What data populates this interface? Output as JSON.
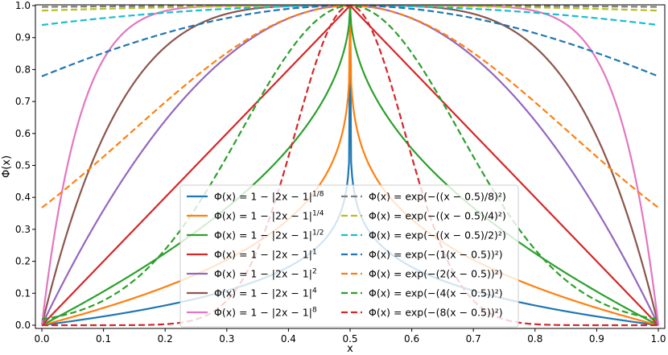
{
  "chart_data": {
    "type": "line",
    "xlabel": "x",
    "ylabel": "Φ(x)",
    "xlim": [
      0.0,
      1.0
    ],
    "ylim": [
      0.0,
      1.0
    ],
    "x_ticks": [
      "0.0",
      "0.1",
      "0.2",
      "0.3",
      "0.4",
      "0.5",
      "0.6",
      "0.7",
      "0.8",
      "0.9",
      "1.0"
    ],
    "y_ticks": [
      "0.0",
      "0.1",
      "0.2",
      "0.3",
      "0.4",
      "0.5",
      "0.6",
      "0.7",
      "0.8",
      "0.9",
      "1.0"
    ],
    "grid": false,
    "legend_position": "lower-center",
    "x": [
      0.0,
      0.1,
      0.2,
      0.3,
      0.4,
      0.5,
      0.6,
      0.7,
      0.8,
      0.9,
      1.0
    ],
    "series": [
      {
        "name": "Φ(x) = 1 − |2x − 1|^(1/8)",
        "label_main": "Φ(x) = 1 − |2x − 1|",
        "label_sup": "1/8",
        "color": "#1f77b4",
        "style": "solid",
        "kind": "power",
        "p": 0.125,
        "values": [
          0.0,
          0.028,
          0.062,
          0.105,
          0.182,
          1.0,
          0.182,
          0.105,
          0.062,
          0.028,
          0.0
        ]
      },
      {
        "name": "Φ(x) = 1 − |2x − 1|^(1/4)",
        "label_main": "Φ(x) = 1 − |2x − 1|",
        "label_sup": "1/4",
        "color": "#ff7f0e",
        "style": "solid",
        "kind": "power",
        "p": 0.25,
        "values": [
          0.0,
          0.054,
          0.12,
          0.2,
          0.331,
          1.0,
          0.331,
          0.2,
          0.12,
          0.054,
          0.0
        ]
      },
      {
        "name": "Φ(x) = 1 − |2x − 1|^(1/2)",
        "label_main": "Φ(x) = 1 − |2x − 1|",
        "label_sup": "1/2",
        "color": "#2ca02c",
        "style": "solid",
        "kind": "power",
        "p": 0.5,
        "values": [
          0.0,
          0.106,
          0.225,
          0.368,
          0.553,
          1.0,
          0.553,
          0.368,
          0.225,
          0.106,
          0.0
        ]
      },
      {
        "name": "Φ(x) = 1 − |2x − 1|^1",
        "label_main": "Φ(x) = 1 − |2x − 1|",
        "label_sup": "1",
        "color": "#d62728",
        "style": "solid",
        "kind": "power",
        "p": 1,
        "values": [
          0.0,
          0.2,
          0.4,
          0.6,
          0.8,
          1.0,
          0.8,
          0.6,
          0.4,
          0.2,
          0.0
        ]
      },
      {
        "name": "Φ(x) = 1 − |2x − 1|^2",
        "label_main": "Φ(x) = 1 − |2x − 1|",
        "label_sup": "2",
        "color": "#9467bd",
        "style": "solid",
        "kind": "power",
        "p": 2,
        "values": [
          0.0,
          0.36,
          0.64,
          0.84,
          0.96,
          1.0,
          0.96,
          0.84,
          0.64,
          0.36,
          0.0
        ]
      },
      {
        "name": "Φ(x) = 1 − |2x − 1|^4",
        "label_main": "Φ(x) = 1 − |2x − 1|",
        "label_sup": "4",
        "color": "#8c564b",
        "style": "solid",
        "kind": "power",
        "p": 4,
        "values": [
          0.0,
          0.59,
          0.87,
          0.974,
          0.998,
          1.0,
          0.998,
          0.974,
          0.87,
          0.59,
          0.0
        ]
      },
      {
        "name": "Φ(x) = 1 − |2x − 1|^8",
        "label_main": "Φ(x) = 1 − |2x − 1|",
        "label_sup": "8",
        "color": "#e377c2",
        "style": "solid",
        "kind": "power",
        "p": 8,
        "values": [
          0.0,
          0.832,
          0.983,
          0.999,
          1.0,
          1.0,
          1.0,
          0.999,
          0.983,
          0.832,
          0.0
        ]
      },
      {
        "name": "Φ(x) = exp(−((x−0.5)/8)²)",
        "label_main": "Φ(x) = exp(−((x − 0.5)/8)²)",
        "color": "#7f7f7f",
        "style": "dashed",
        "kind": "gauss",
        "k": 0.125,
        "values": [
          0.996,
          0.998,
          0.999,
          0.999,
          1.0,
          1.0,
          1.0,
          0.999,
          0.999,
          0.998,
          0.996
        ]
      },
      {
        "name": "Φ(x) = exp(−((x−0.5)/4)²)",
        "label_main": "Φ(x) = exp(−((x − 0.5)/4)²)",
        "color": "#bcbd22",
        "style": "dashed",
        "kind": "gauss",
        "k": 0.25,
        "values": [
          0.984,
          0.99,
          0.994,
          0.998,
          0.999,
          1.0,
          0.999,
          0.998,
          0.994,
          0.99,
          0.984
        ]
      },
      {
        "name": "Φ(x) = exp(−((x−0.5)/2)²)",
        "label_main": "Φ(x) = exp(−((x − 0.5)/2)²)",
        "color": "#17becf",
        "style": "dashed",
        "kind": "gauss",
        "k": 0.5,
        "values": [
          0.939,
          0.961,
          0.978,
          0.99,
          0.998,
          1.0,
          0.998,
          0.99,
          0.978,
          0.961,
          0.939
        ]
      },
      {
        "name": "Φ(x) = exp(−(1(x−0.5))²)",
        "label_main": "Φ(x) = exp(−(1(x − 0.5))²)",
        "color": "#1f77b4",
        "style": "dashed",
        "kind": "gauss",
        "k": 1,
        "values": [
          0.779,
          0.852,
          0.914,
          0.961,
          0.99,
          1.0,
          0.99,
          0.961,
          0.914,
          0.852,
          0.779
        ]
      },
      {
        "name": "Φ(x) = exp(−(2(x−0.5))²)",
        "label_main": "Φ(x) = exp(−(2(x − 0.5))²)",
        "color": "#ff7f0e",
        "style": "dashed",
        "kind": "gauss",
        "k": 2,
        "values": [
          0.368,
          0.527,
          0.698,
          0.852,
          0.961,
          1.0,
          0.961,
          0.852,
          0.698,
          0.527,
          0.368
        ]
      },
      {
        "name": "Φ(x) = exp(−(4(x−0.5))²)",
        "label_main": "Φ(x) = exp(−(4(x − 0.5))²)",
        "color": "#2ca02c",
        "style": "dashed",
        "kind": "gauss",
        "k": 4,
        "values": [
          0.018,
          0.077,
          0.237,
          0.527,
          0.852,
          1.0,
          0.852,
          0.527,
          0.237,
          0.077,
          0.018
        ]
      },
      {
        "name": "Φ(x) = exp(−(8(x−0.5))²)",
        "label_main": "Φ(x) = exp(−(8(x − 0.5))²)",
        "color": "#d62728",
        "style": "dashed",
        "kind": "gauss",
        "k": 8,
        "values": [
          0.0,
          0.0,
          0.003,
          0.077,
          0.527,
          1.0,
          0.527,
          0.077,
          0.003,
          0.0,
          0.0
        ]
      }
    ]
  }
}
